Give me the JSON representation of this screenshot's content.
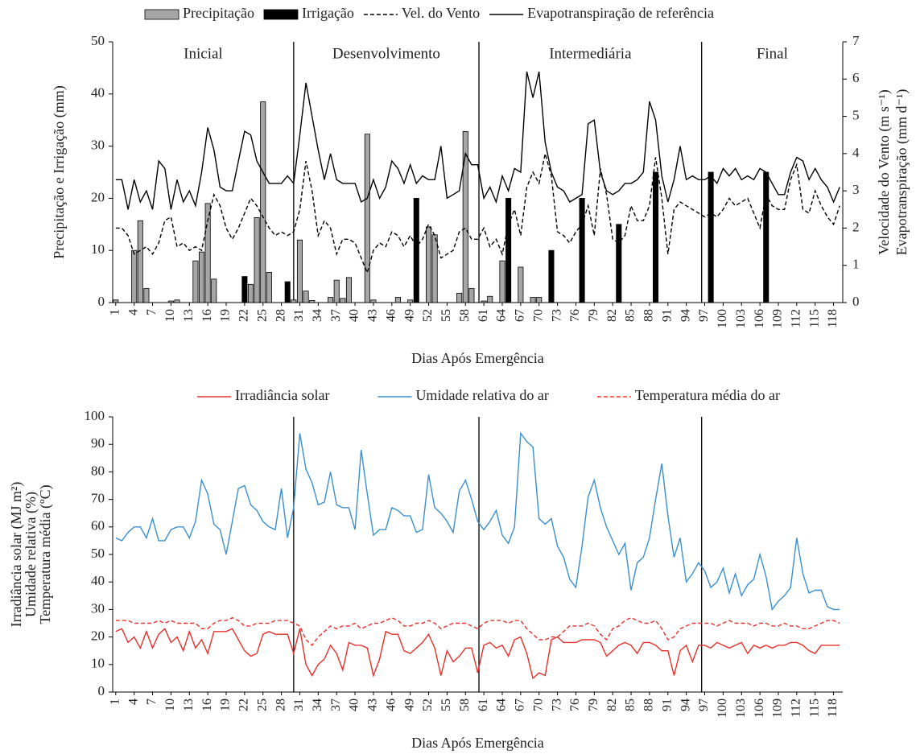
{
  "chart_data": [
    {
      "type": "combo",
      "x": [
        1,
        2,
        3,
        4,
        5,
        6,
        7,
        8,
        9,
        10,
        11,
        12,
        13,
        14,
        15,
        16,
        17,
        18,
        19,
        20,
        21,
        22,
        23,
        24,
        25,
        26,
        27,
        28,
        29,
        30,
        31,
        32,
        33,
        34,
        35,
        36,
        37,
        38,
        39,
        40,
        41,
        42,
        43,
        44,
        45,
        46,
        47,
        48,
        49,
        50,
        51,
        52,
        53,
        54,
        55,
        56,
        57,
        58,
        59,
        60,
        61,
        62,
        63,
        64,
        65,
        66,
        67,
        68,
        69,
        70,
        71,
        72,
        73,
        74,
        75,
        76,
        77,
        78,
        79,
        80,
        81,
        82,
        83,
        84,
        85,
        86,
        87,
        88,
        89,
        90,
        91,
        92,
        93,
        94,
        95,
        96,
        97,
        98,
        99,
        100,
        101,
        102,
        103,
        104,
        105,
        106,
        107,
        108,
        109,
        110,
        111,
        112,
        113,
        114,
        115,
        116,
        117,
        118,
        119
      ],
      "xlim": [
        0.5,
        119.5
      ],
      "xticks": [
        1,
        4,
        7,
        10,
        13,
        16,
        19,
        22,
        25,
        28,
        31,
        34,
        37,
        40,
        43,
        46,
        49,
        52,
        55,
        58,
        61,
        64,
        67,
        70,
        73,
        76,
        79,
        82,
        85,
        88,
        91,
        94,
        97,
        100,
        103,
        106,
        109,
        112,
        115,
        118
      ],
      "xlabel": "Dias Após Emergência",
      "ylabel": "Precipitação e Irrigação (mm)",
      "y2label": [
        "Velocidade do Vento (m s⁻¹)",
        "Evapotranspiração (mm d⁻¹)"
      ],
      "ylim": [
        0,
        50
      ],
      "yticks": [
        0,
        10,
        20,
        30,
        40,
        50
      ],
      "y2lim": [
        0,
        7
      ],
      "y2ticks": [
        0,
        1,
        2,
        3,
        4,
        5,
        6,
        7
      ],
      "phase_labels": [
        "Inicial",
        "Desenvolvimento",
        "Intermediária",
        "Final"
      ],
      "phase_boundaries": [
        30,
        60.2,
        96.5
      ],
      "series": [
        {
          "name": "Precipitação",
          "style": "bar",
          "color": "#a6a6a6",
          "values": [
            0.5,
            0,
            0,
            10,
            15.7,
            2.7,
            0,
            0,
            0,
            0.3,
            0.5,
            0,
            0,
            8,
            9.7,
            19,
            4.5,
            0,
            0,
            0,
            0,
            0,
            3.5,
            16.3,
            38.5,
            5.8,
            0,
            0,
            0,
            0.5,
            12,
            2.2,
            0.4,
            0,
            0,
            1,
            4.3,
            0.8,
            4.8,
            0,
            0,
            32.3,
            0.5,
            0,
            0,
            0,
            1,
            0,
            0.5,
            0,
            0,
            14.5,
            13,
            0,
            0,
            0,
            1.8,
            32.8,
            2.7,
            0,
            0.3,
            1.2,
            0,
            8,
            0,
            0,
            6.8,
            0,
            1,
            1,
            0,
            0,
            0,
            0,
            0,
            0,
            0,
            0,
            0,
            0,
            0,
            0,
            0,
            0,
            0,
            0,
            0,
            0,
            0,
            0,
            0,
            0,
            0,
            0,
            0,
            0,
            0,
            0,
            0,
            0,
            0,
            0,
            0,
            0,
            0,
            0,
            0,
            0,
            0,
            0,
            0,
            0,
            0,
            0,
            0,
            0,
            0,
            0,
            0
          ]
        },
        {
          "name": "Irrigação",
          "style": "bar",
          "color": "#000000",
          "values": [
            0,
            0,
            0,
            0,
            0,
            0,
            0,
            0,
            0,
            0,
            0,
            0,
            0,
            0,
            0,
            0,
            0,
            0,
            0,
            0,
            0,
            5,
            0,
            0,
            0,
            0,
            0,
            0,
            4,
            0,
            0,
            0,
            0,
            0,
            0,
            0,
            0,
            0,
            0,
            0,
            0,
            0,
            0,
            0,
            0,
            0,
            0,
            0,
            0,
            20,
            0,
            0,
            0,
            0,
            0,
            0,
            0,
            0,
            0,
            0,
            0,
            0,
            0,
            0,
            20,
            0,
            0,
            0,
            0,
            0,
            0,
            10,
            0,
            0,
            0,
            0,
            20,
            0,
            0,
            0,
            0,
            0,
            15,
            0,
            0,
            0,
            0,
            0,
            25,
            0,
            0,
            0,
            0,
            0,
            0,
            0,
            0,
            25,
            0,
            0,
            0,
            0,
            0,
            0,
            0,
            0,
            25,
            0,
            0,
            0,
            0,
            0,
            0,
            0,
            0,
            0,
            0,
            0,
            0
          ]
        },
        {
          "name": "Vel. do Vento",
          "style": "dashed",
          "color": "#000000",
          "axis": "y2",
          "values": [
            2.0,
            2.0,
            1.8,
            1.3,
            1.4,
            1.5,
            1.3,
            1.6,
            2.2,
            2.3,
            1.5,
            1.6,
            1.4,
            1.5,
            1.4,
            2.2,
            2.9,
            2.6,
            2.0,
            1.7,
            2.0,
            2.4,
            2.8,
            2.6,
            2.3,
            2.0,
            1.8,
            1.9,
            1.8,
            1.9,
            2.5,
            3.8,
            3.0,
            1.8,
            2.2,
            2.0,
            1.3,
            1.7,
            1.7,
            1.6,
            1.2,
            0.8,
            1.4,
            1.6,
            1.5,
            1.9,
            1.8,
            1.5,
            1.8,
            1.5,
            1.7,
            2.1,
            1.8,
            1.2,
            1.3,
            1.4,
            1.9,
            2.0,
            1.7,
            1.7,
            2.0,
            1.5,
            1.7,
            1.3,
            2.1,
            2.5,
            1.8,
            3.1,
            3.5,
            3.2,
            4.0,
            3.4,
            1.9,
            1.8,
            1.6,
            1.9,
            2.1,
            2.6,
            1.8,
            3.6,
            2.9,
            1.7,
            1.6,
            1.8,
            2.6,
            2.2,
            2.2,
            2.6,
            3.9,
            2.8,
            1.3,
            2.5,
            2.7,
            2.6,
            2.5,
            2.4,
            2.3,
            2.4,
            2.3,
            2.5,
            2.8,
            2.6,
            2.7,
            2.8,
            2.4,
            2.0,
            2.9,
            2.6,
            2.5,
            2.5,
            3.3,
            3.7,
            2.5,
            2.4,
            3.0,
            2.6,
            2.3,
            2.1,
            2.6
          ]
        },
        {
          "name": "Evapotranspiração de referência",
          "style": "solid",
          "color": "#000000",
          "axis": "y2",
          "values": [
            3.3,
            3.3,
            2.5,
            3.3,
            2.7,
            3.0,
            2.5,
            3.8,
            3.6,
            2.5,
            3.3,
            2.7,
            3.0,
            2.6,
            3.5,
            4.7,
            4.1,
            3.1,
            3.0,
            3.0,
            3.8,
            4.6,
            4.5,
            3.8,
            3.5,
            3.2,
            3.2,
            3.2,
            3.4,
            3.2,
            4.5,
            5.9,
            5.0,
            4.1,
            3.3,
            4.0,
            3.3,
            3.2,
            3.2,
            3.2,
            2.7,
            2.8,
            3.3,
            2.8,
            3.1,
            3.8,
            3.6,
            3.2,
            3.7,
            3.2,
            3.4,
            3.3,
            3.3,
            4.2,
            2.8,
            2.9,
            3.0,
            4.0,
            3.7,
            3.7,
            2.8,
            3.1,
            2.7,
            3.4,
            3.0,
            3.6,
            3.5,
            6.2,
            5.5,
            6.2,
            4.3,
            3.5,
            3.1,
            3.0,
            2.7,
            2.8,
            2.9,
            4.8,
            4.9,
            3.5,
            3.0,
            2.9,
            3.0,
            3.2,
            3.2,
            3.3,
            3.5,
            5.4,
            4.9,
            3.4,
            2.7,
            3.3,
            4.2,
            3.3,
            3.4,
            3.3,
            3.3,
            3.4,
            3.2,
            3.6,
            3.4,
            3.6,
            3.3,
            3.4,
            3.3,
            3.6,
            3.5,
            3.2,
            2.9,
            2.9,
            3.5,
            3.9,
            3.8,
            3.3,
            3.6,
            3.3,
            3.1,
            2.7,
            3.1
          ]
        }
      ]
    },
    {
      "type": "line",
      "x": [
        1,
        2,
        3,
        4,
        5,
        6,
        7,
        8,
        9,
        10,
        11,
        12,
        13,
        14,
        15,
        16,
        17,
        18,
        19,
        20,
        21,
        22,
        23,
        24,
        25,
        26,
        27,
        28,
        29,
        30,
        31,
        32,
        33,
        34,
        35,
        36,
        37,
        38,
        39,
        40,
        41,
        42,
        43,
        44,
        45,
        46,
        47,
        48,
        49,
        50,
        51,
        52,
        53,
        54,
        55,
        56,
        57,
        58,
        59,
        60,
        61,
        62,
        63,
        64,
        65,
        66,
        67,
        68,
        69,
        70,
        71,
        72,
        73,
        74,
        75,
        76,
        77,
        78,
        79,
        80,
        81,
        82,
        83,
        84,
        85,
        86,
        87,
        88,
        89,
        90,
        91,
        92,
        93,
        94,
        95,
        96,
        97,
        98,
        99,
        100,
        101,
        102,
        103,
        104,
        105,
        106,
        107,
        108,
        109,
        110,
        111,
        112,
        113,
        114,
        115,
        116,
        117,
        118,
        119
      ],
      "xlim": [
        0.5,
        119.5
      ],
      "xticks": [
        1,
        4,
        7,
        10,
        13,
        16,
        19,
        22,
        25,
        28,
        31,
        34,
        37,
        40,
        43,
        46,
        49,
        52,
        55,
        58,
        61,
        64,
        67,
        70,
        73,
        76,
        79,
        82,
        85,
        88,
        91,
        94,
        97,
        100,
        103,
        106,
        109,
        112,
        115,
        118
      ],
      "xlabel": "Dias Após Emergência",
      "ylabel": [
        "Irradiância solar (MJ m²)",
        "Umidade relativa (%)",
        "Temperatura média (ºC)"
      ],
      "ylim": [
        0,
        100
      ],
      "yticks": [
        0,
        10,
        20,
        30,
        40,
        50,
        60,
        70,
        80,
        90,
        100
      ],
      "phase_boundaries": [
        30,
        60.2,
        96.5
      ],
      "series": [
        {
          "name": "Irradiância solar",
          "style": "solid",
          "color": "#e8302a",
          "values": [
            22,
            23,
            18,
            20,
            16,
            22,
            16,
            21,
            23,
            18,
            20,
            15,
            22,
            16,
            19,
            14,
            22,
            22,
            22,
            23,
            19,
            15,
            13,
            14,
            21,
            22,
            21,
            21,
            21,
            14,
            23,
            10,
            6,
            10,
            12,
            17,
            14,
            8,
            18,
            17,
            17,
            16,
            6,
            12,
            22,
            21,
            21,
            15,
            14,
            16,
            18,
            21,
            16,
            6,
            15,
            11,
            13,
            16,
            16,
            7,
            17,
            18,
            16,
            17,
            13,
            19,
            20,
            14,
            5,
            7,
            6,
            19,
            20,
            18,
            18,
            18,
            19,
            19,
            19,
            18,
            13,
            15,
            17,
            18,
            17,
            14,
            18,
            18,
            17,
            15,
            15,
            6,
            15,
            17,
            11,
            17,
            17,
            16,
            18,
            17,
            16,
            17,
            18,
            14,
            17,
            16,
            17,
            16,
            17,
            17,
            18,
            18,
            17,
            15,
            14,
            17,
            17,
            17,
            17
          ]
        },
        {
          "name": "Umidade relativa do ar",
          "style": "solid",
          "color": "#3a8fd0",
          "values": [
            56,
            55,
            58,
            60,
            60,
            56,
            63,
            55,
            55,
            59,
            60,
            60,
            56,
            62,
            77,
            72,
            61,
            59,
            50,
            62,
            74,
            75,
            68,
            66,
            62,
            60,
            59,
            74,
            56,
            67,
            94,
            81,
            76,
            68,
            69,
            80,
            68,
            67,
            67,
            59,
            88,
            72,
            57,
            59,
            59,
            67,
            66,
            64,
            64,
            58,
            59,
            79,
            67,
            65,
            62,
            58,
            73,
            77,
            70,
            62,
            59,
            62,
            66,
            57,
            54,
            60,
            94,
            91,
            89,
            63,
            61,
            63,
            53,
            49,
            41,
            38,
            53,
            71,
            77,
            67,
            60,
            55,
            50,
            54,
            37,
            47,
            49,
            56,
            70,
            83,
            64,
            49,
            56,
            40,
            43,
            47,
            44,
            38,
            40,
            45,
            36,
            43,
            35,
            39,
            41,
            50,
            42,
            30,
            33,
            35,
            38,
            56,
            43,
            36,
            37,
            37,
            31,
            30,
            30
          ]
        },
        {
          "name": "Temperatura média do ar",
          "style": "dashed",
          "color": "#e8302a",
          "values": [
            26,
            26,
            26,
            25,
            25,
            25,
            25,
            26,
            25,
            26,
            25,
            25,
            25,
            25,
            23,
            23,
            25,
            26,
            26,
            27,
            26,
            24,
            24,
            25,
            25,
            25,
            26,
            26,
            26,
            25,
            24,
            19,
            17,
            20,
            22,
            24,
            23,
            24,
            24,
            25,
            23,
            24,
            25,
            25,
            26,
            27,
            26,
            24,
            24,
            25,
            25,
            26,
            25,
            23,
            24,
            25,
            25,
            25,
            24,
            23,
            25,
            26,
            26,
            26,
            25,
            26,
            26,
            23,
            21,
            19,
            19,
            20,
            20,
            22,
            24,
            24,
            24,
            25,
            24,
            21,
            19,
            23,
            24,
            26,
            27,
            26,
            25,
            25,
            26,
            23,
            19,
            20,
            23,
            24,
            25,
            25,
            25,
            25,
            24,
            25,
            26,
            25,
            25,
            25,
            24,
            25,
            25,
            24,
            24,
            25,
            24,
            24,
            23,
            23,
            24,
            25,
            26,
            26,
            25
          ]
        }
      ]
    }
  ]
}
